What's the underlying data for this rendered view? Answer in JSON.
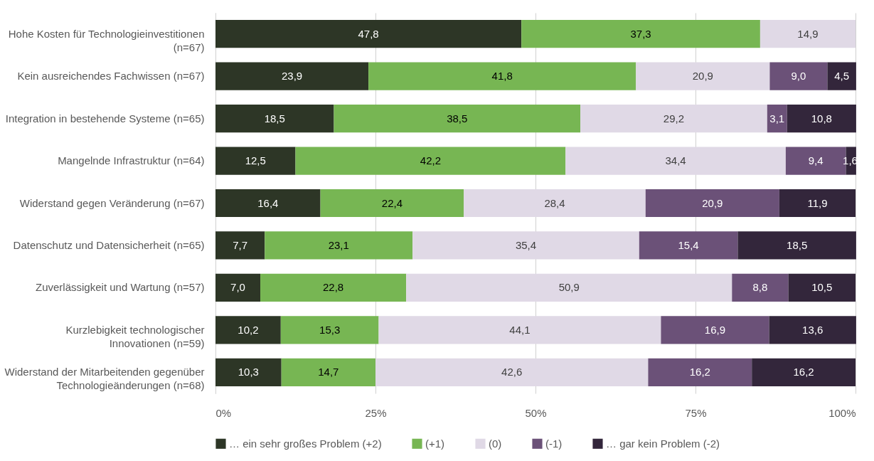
{
  "chart_data": {
    "type": "bar",
    "orientation": "horizontal",
    "stacked": true,
    "categories": [
      "Hohe Kosten für Technologieinvestitionen (n=67)",
      "Kein ausreichendes Fachwissen (n=67)",
      "Integration in bestehende Systeme (n=65)",
      "Mangelnde Infrastruktur (n=64)",
      "Widerstand gegen Veränderung (n=67)",
      "Datenschutz und Datensicherheit (n=65)",
      "Zuverlässigkeit und Wartung (n=57)",
      "Kurzlebigkeit technologischer Innovationen (n=59)",
      "Widerstand der Mitarbeitenden gegenüber Technologieänderungen (n=68)"
    ],
    "series": [
      {
        "name": "… ein sehr großes Problem (+2)",
        "color": "#2d3626",
        "values": [
          47.8,
          23.9,
          18.5,
          12.5,
          16.4,
          7.7,
          7.0,
          10.2,
          10.3
        ],
        "value_labels": [
          "47,8",
          "23,9",
          "18,5",
          "12,5",
          "16,4",
          "7,7",
          "7,0",
          "10,2",
          "10,3"
        ]
      },
      {
        "name": "(+1)",
        "color": "#77b653",
        "values": [
          37.3,
          41.8,
          38.5,
          42.2,
          22.4,
          23.1,
          22.8,
          15.3,
          14.7
        ],
        "value_labels": [
          "37,3",
          "41,8",
          "38,5",
          "42,2",
          "22,4",
          "23,1",
          "22,8",
          "15,3",
          "14,7"
        ]
      },
      {
        "name": "(0)",
        "color": "#e0d9e6",
        "values": [
          14.9,
          20.9,
          29.2,
          34.4,
          28.4,
          35.4,
          50.9,
          44.1,
          42.6
        ],
        "value_labels": [
          "14,9",
          "20,9",
          "29,2",
          "34,4",
          "28,4",
          "35,4",
          "50,9",
          "44,1",
          "42,6"
        ]
      },
      {
        "name": "(-1)",
        "color": "#6b5178",
        "values": [
          null,
          9.0,
          3.1,
          9.4,
          20.9,
          15.4,
          8.8,
          16.9,
          16.2
        ],
        "value_labels": [
          null,
          "9,0",
          "3,1",
          "9,4",
          "20,9",
          "15,4",
          "8,8",
          "16,9",
          "16,2"
        ]
      },
      {
        "name": "… gar kein Problem (-2)",
        "color": "#33263b",
        "values": [
          null,
          4.5,
          10.8,
          1.6,
          11.9,
          18.5,
          10.5,
          13.6,
          16.2
        ],
        "value_labels": [
          null,
          "4,5",
          "10,8",
          "1,6",
          "11,9",
          "18,5",
          "10,5",
          "13,6",
          "16,2"
        ]
      }
    ],
    "xlim": [
      0,
      100
    ],
    "xticks": [
      {
        "value": 0,
        "label": "0%"
      },
      {
        "value": 25,
        "label": "25%"
      },
      {
        "value": 50,
        "label": "50%"
      },
      {
        "value": 75,
        "label": "75%"
      },
      {
        "value": 100,
        "label": "100%"
      }
    ],
    "grid": "x",
    "legend": "bottom"
  }
}
